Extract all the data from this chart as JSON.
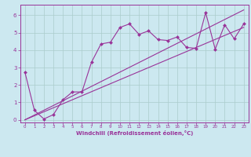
{
  "xlabel": "Windchill (Refroidissement éolien,°C)",
  "background_color": "#cce8f0",
  "line_color": "#993399",
  "grid_color": "#aacccc",
  "xlim": [
    -0.5,
    23.5
  ],
  "ylim": [
    -0.15,
    6.6
  ],
  "xticks": [
    0,
    1,
    2,
    3,
    4,
    5,
    6,
    7,
    8,
    9,
    10,
    11,
    12,
    13,
    14,
    15,
    16,
    17,
    18,
    19,
    20,
    21,
    22,
    23
  ],
  "yticks": [
    0,
    1,
    2,
    3,
    4,
    5,
    6
  ],
  "ref_line1": [
    [
      0,
      23
    ],
    [
      0,
      6.3
    ]
  ],
  "ref_line2": [
    [
      0,
      23
    ],
    [
      0,
      5.3
    ]
  ],
  "data_x": [
    0,
    1,
    2,
    3,
    4,
    5,
    6,
    7,
    8,
    9,
    10,
    11,
    12,
    13,
    14,
    15,
    16,
    17,
    18,
    19,
    20,
    21,
    22,
    23
  ],
  "data_y": [
    2.75,
    0.55,
    0.05,
    0.3,
    1.15,
    1.6,
    1.6,
    3.3,
    4.35,
    4.45,
    5.3,
    5.5,
    4.9,
    5.1,
    4.6,
    4.55,
    4.75,
    4.15,
    4.1,
    6.15,
    4.05,
    5.45,
    4.65,
    5.5
  ]
}
